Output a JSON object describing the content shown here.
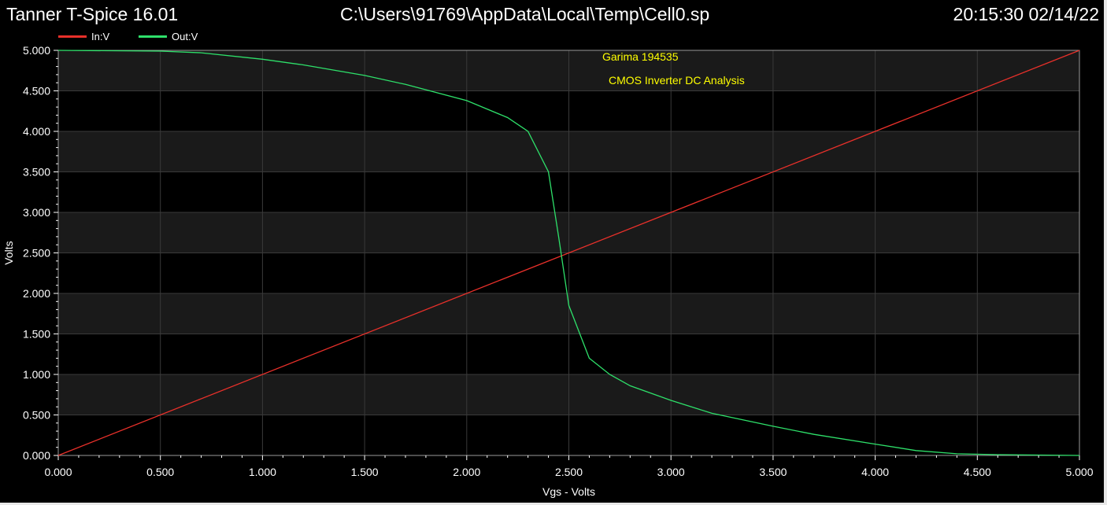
{
  "header": {
    "app_title": "Tanner T-Spice 16.01",
    "file_path": "C:\\Users\\91769\\AppData\\Local\\Temp\\Cell0.sp",
    "timestamp": "20:15:30 02/14/22"
  },
  "colors": {
    "background": "#000000",
    "plot_band": "#1a1a1a",
    "grid": "#3a3a3a",
    "in_series": "#e8302a",
    "out_series": "#2ee06a",
    "annotation": "#ffff00",
    "axes_text": "#ffffff"
  },
  "chart_data": {
    "type": "line",
    "xlabel": "Vgs - Volts",
    "ylabel": "Volts",
    "xlim": [
      0,
      5
    ],
    "ylim": [
      0,
      5
    ],
    "x_ticks": [
      "0.000",
      "0.500",
      "1.000",
      "1.500",
      "2.000",
      "2.500",
      "3.000",
      "3.500",
      "4.000",
      "4.500",
      "5.000"
    ],
    "y_ticks": [
      "0.000",
      "0.500",
      "1.000",
      "1.500",
      "2.000",
      "2.500",
      "3.000",
      "3.500",
      "4.000",
      "4.500",
      "5.000"
    ],
    "grid": true,
    "legend_position": "top-left",
    "annotations": [
      "Garima 194535",
      "CMOS Inverter DC Analysis"
    ],
    "series": [
      {
        "name": "In:V",
        "x": [
          0,
          5
        ],
        "y": [
          0,
          5
        ]
      },
      {
        "name": "Out:V",
        "x": [
          0,
          0.5,
          0.7,
          1.0,
          1.2,
          1.5,
          1.7,
          2.0,
          2.2,
          2.3,
          2.4,
          2.45,
          2.5,
          2.6,
          2.7,
          2.8,
          3.0,
          3.2,
          3.5,
          3.7,
          4.0,
          4.2,
          4.4,
          4.6,
          5.0
        ],
        "y": [
          5.0,
          4.99,
          4.97,
          4.89,
          4.82,
          4.69,
          4.58,
          4.38,
          4.17,
          4.0,
          3.5,
          2.7,
          1.85,
          1.2,
          1.0,
          0.86,
          0.68,
          0.52,
          0.36,
          0.26,
          0.14,
          0.06,
          0.02,
          0.01,
          0.0
        ]
      }
    ]
  }
}
